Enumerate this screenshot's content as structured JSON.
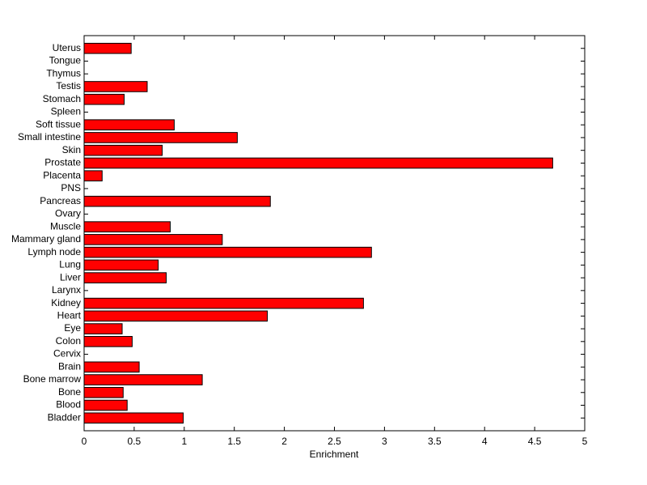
{
  "chart_data": {
    "type": "barh",
    "xlabel": "Enrichment",
    "categories": [
      "Bladder",
      "Blood",
      "Bone",
      "Bone marrow",
      "Brain",
      "Cervix",
      "Colon",
      "Eye",
      "Heart",
      "Kidney",
      "Larynx",
      "Liver",
      "Lung",
      "Lymph node",
      "Mammary gland",
      "Muscle",
      "Ovary",
      "Pancreas",
      "PNS",
      "Placenta",
      "Prostate",
      "Skin",
      "Small intestine",
      "Soft tissue",
      "Spleen",
      "Stomach",
      "Testis",
      "Thymus",
      "Tongue",
      "Uterus"
    ],
    "values": [
      0.99,
      0.43,
      0.39,
      1.18,
      0.55,
      0,
      0.48,
      0.38,
      1.83,
      2.79,
      0,
      0.82,
      0.74,
      2.87,
      1.38,
      0.86,
      0,
      1.86,
      0,
      0.18,
      4.68,
      0.78,
      1.53,
      0.9,
      0,
      0.4,
      0.63,
      0,
      0,
      0.47
    ],
    "color": "#ff0000",
    "xlim": [
      0,
      5
    ],
    "xticks": [
      0,
      0.5,
      1,
      1.5,
      2,
      2.5,
      3,
      3.5,
      4,
      4.5,
      5
    ]
  }
}
